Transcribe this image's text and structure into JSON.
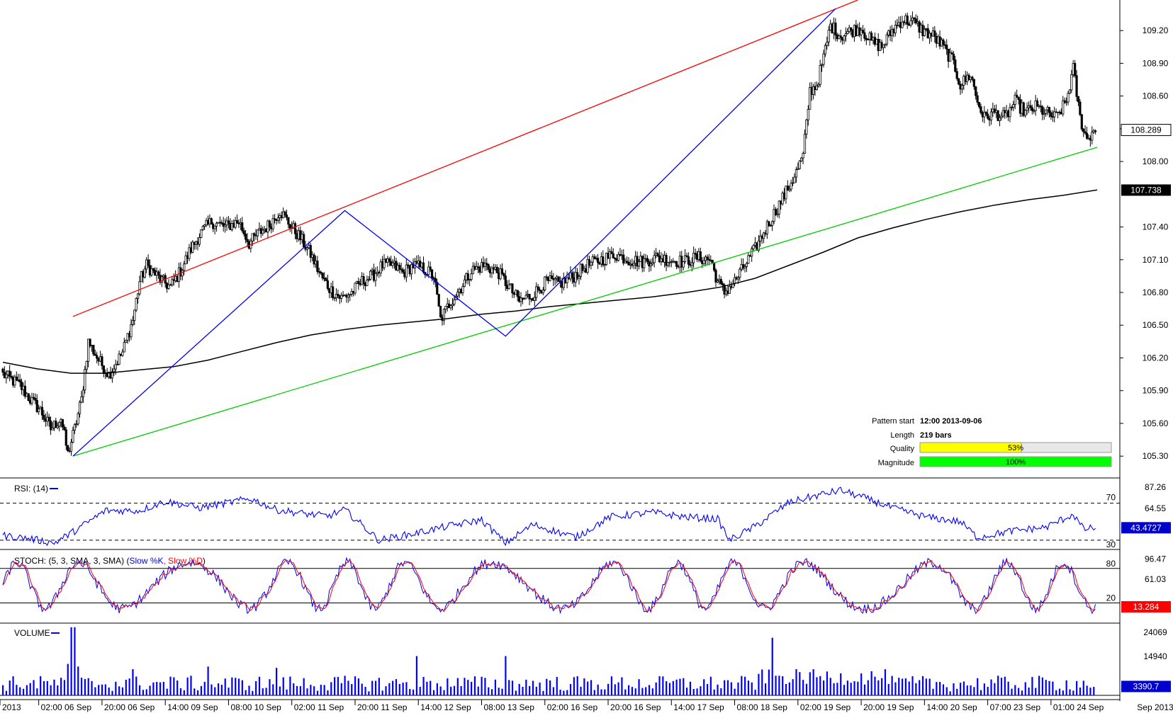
{
  "chart_data": [
    {
      "type": "candlestick",
      "panel": "price",
      "ylim": [
        105.1,
        109.48
      ],
      "y_ticks": [
        105.3,
        105.6,
        105.9,
        106.2,
        106.5,
        106.8,
        107.1,
        107.4,
        108.0,
        108.3,
        108.6,
        108.9,
        109.2
      ],
      "y_tick_labels": [
        "105.30",
        "105.60",
        "105.90",
        "106.20",
        "106.50",
        "106.80",
        "107.10",
        "107.40",
        "108.00",
        "108.30",
        "108.60",
        "108.90",
        "109.20"
      ],
      "current_price": "108.289",
      "ma_value": "107.738",
      "candle_key": [
        {
          "x": 0,
          "y": 106.05
        },
        {
          "x": 10,
          "y": 105.95
        },
        {
          "x": 16,
          "y": 105.82
        },
        {
          "x": 22,
          "y": 105.72
        },
        {
          "x": 28,
          "y": 105.55
        },
        {
          "x": 34,
          "y": 105.65
        },
        {
          "x": 38,
          "y": 105.32
        },
        {
          "x": 42,
          "y": 105.55
        },
        {
          "x": 46,
          "y": 105.82
        },
        {
          "x": 50,
          "y": 106.35
        },
        {
          "x": 56,
          "y": 106.18
        },
        {
          "x": 62,
          "y": 106.05
        },
        {
          "x": 70,
          "y": 106.25
        },
        {
          "x": 76,
          "y": 106.55
        },
        {
          "x": 80,
          "y": 106.9
        },
        {
          "x": 84,
          "y": 107.05
        },
        {
          "x": 92,
          "y": 106.92
        },
        {
          "x": 98,
          "y": 106.85
        },
        {
          "x": 104,
          "y": 107.0
        },
        {
          "x": 110,
          "y": 107.2
        },
        {
          "x": 116,
          "y": 107.35
        },
        {
          "x": 122,
          "y": 107.45
        },
        {
          "x": 130,
          "y": 107.4
        },
        {
          "x": 138,
          "y": 107.45
        },
        {
          "x": 144,
          "y": 107.25
        },
        {
          "x": 150,
          "y": 107.35
        },
        {
          "x": 156,
          "y": 107.42
        },
        {
          "x": 162,
          "y": 107.55
        },
        {
          "x": 168,
          "y": 107.42
        },
        {
          "x": 174,
          "y": 107.3
        },
        {
          "x": 180,
          "y": 107.15
        },
        {
          "x": 186,
          "y": 106.95
        },
        {
          "x": 192,
          "y": 106.82
        },
        {
          "x": 198,
          "y": 106.75
        },
        {
          "x": 204,
          "y": 106.8
        },
        {
          "x": 210,
          "y": 106.9
        },
        {
          "x": 216,
          "y": 106.95
        },
        {
          "x": 222,
          "y": 107.05
        },
        {
          "x": 228,
          "y": 107.05
        },
        {
          "x": 234,
          "y": 106.98
        },
        {
          "x": 240,
          "y": 107.05
        },
        {
          "x": 246,
          "y": 107.02
        },
        {
          "x": 252,
          "y": 106.95
        },
        {
          "x": 256,
          "y": 106.55
        },
        {
          "x": 262,
          "y": 106.72
        },
        {
          "x": 268,
          "y": 106.85
        },
        {
          "x": 274,
          "y": 107.0
        },
        {
          "x": 282,
          "y": 107.05
        },
        {
          "x": 290,
          "y": 106.98
        },
        {
          "x": 296,
          "y": 106.85
        },
        {
          "x": 302,
          "y": 106.72
        },
        {
          "x": 310,
          "y": 106.78
        },
        {
          "x": 318,
          "y": 106.9
        },
        {
          "x": 326,
          "y": 106.88
        },
        {
          "x": 334,
          "y": 106.95
        },
        {
          "x": 342,
          "y": 107.05
        },
        {
          "x": 350,
          "y": 107.1
        },
        {
          "x": 358,
          "y": 107.15
        },
        {
          "x": 366,
          "y": 107.1
        },
        {
          "x": 374,
          "y": 107.08
        },
        {
          "x": 382,
          "y": 107.12
        },
        {
          "x": 390,
          "y": 107.1
        },
        {
          "x": 398,
          "y": 107.08
        },
        {
          "x": 406,
          "y": 107.12
        },
        {
          "x": 414,
          "y": 107.1
        },
        {
          "x": 418,
          "y": 106.9
        },
        {
          "x": 422,
          "y": 106.8
        },
        {
          "x": 428,
          "y": 106.9
        },
        {
          "x": 434,
          "y": 107.05
        },
        {
          "x": 440,
          "y": 107.2
        },
        {
          "x": 446,
          "y": 107.38
        },
        {
          "x": 452,
          "y": 107.55
        },
        {
          "x": 458,
          "y": 107.72
        },
        {
          "x": 464,
          "y": 107.9
        },
        {
          "x": 468,
          "y": 108.05
        },
        {
          "x": 472,
          "y": 108.65
        },
        {
          "x": 476,
          "y": 108.7
        },
        {
          "x": 480,
          "y": 108.95
        },
        {
          "x": 484,
          "y": 109.25
        },
        {
          "x": 490,
          "y": 109.15
        },
        {
          "x": 496,
          "y": 109.2
        },
        {
          "x": 502,
          "y": 109.22
        },
        {
          "x": 508,
          "y": 109.1
        },
        {
          "x": 514,
          "y": 109.05
        },
        {
          "x": 520,
          "y": 109.2
        },
        {
          "x": 526,
          "y": 109.3
        },
        {
          "x": 532,
          "y": 109.28
        },
        {
          "x": 538,
          "y": 109.2
        },
        {
          "x": 544,
          "y": 109.15
        },
        {
          "x": 550,
          "y": 109.05
        },
        {
          "x": 556,
          "y": 108.9
        },
        {
          "x": 560,
          "y": 108.7
        },
        {
          "x": 566,
          "y": 108.8
        },
        {
          "x": 570,
          "y": 108.55
        },
        {
          "x": 574,
          "y": 108.4
        },
        {
          "x": 580,
          "y": 108.45
        },
        {
          "x": 586,
          "y": 108.4
        },
        {
          "x": 592,
          "y": 108.55
        },
        {
          "x": 598,
          "y": 108.45
        },
        {
          "x": 604,
          "y": 108.5
        },
        {
          "x": 610,
          "y": 108.45
        },
        {
          "x": 616,
          "y": 108.4
        },
        {
          "x": 622,
          "y": 108.55
        },
        {
          "x": 626,
          "y": 108.85
        },
        {
          "x": 630,
          "y": 108.4
        },
        {
          "x": 634,
          "y": 108.2
        },
        {
          "x": 638,
          "y": 108.289
        }
      ],
      "moving_average": [
        {
          "x": 0,
          "y": 106.16
        },
        {
          "x": 20,
          "y": 106.1
        },
        {
          "x": 40,
          "y": 106.06
        },
        {
          "x": 60,
          "y": 106.06
        },
        {
          "x": 80,
          "y": 106.09
        },
        {
          "x": 100,
          "y": 106.12
        },
        {
          "x": 120,
          "y": 106.18
        },
        {
          "x": 140,
          "y": 106.26
        },
        {
          "x": 160,
          "y": 106.34
        },
        {
          "x": 180,
          "y": 106.41
        },
        {
          "x": 200,
          "y": 106.46
        },
        {
          "x": 220,
          "y": 106.5
        },
        {
          "x": 240,
          "y": 106.53
        },
        {
          "x": 260,
          "y": 106.56
        },
        {
          "x": 280,
          "y": 106.6
        },
        {
          "x": 300,
          "y": 106.63
        },
        {
          "x": 320,
          "y": 106.67
        },
        {
          "x": 340,
          "y": 106.7
        },
        {
          "x": 360,
          "y": 106.73
        },
        {
          "x": 380,
          "y": 106.76
        },
        {
          "x": 400,
          "y": 106.8
        },
        {
          "x": 420,
          "y": 106.85
        },
        {
          "x": 440,
          "y": 106.93
        },
        {
          "x": 460,
          "y": 107.05
        },
        {
          "x": 480,
          "y": 107.17
        },
        {
          "x": 500,
          "y": 107.3
        },
        {
          "x": 520,
          "y": 107.39
        },
        {
          "x": 540,
          "y": 107.47
        },
        {
          "x": 560,
          "y": 107.54
        },
        {
          "x": 580,
          "y": 107.6
        },
        {
          "x": 600,
          "y": 107.65
        },
        {
          "x": 620,
          "y": 107.69
        },
        {
          "x": 640,
          "y": 107.74
        }
      ],
      "resistance_line": {
        "from": {
          "x": 41,
          "y": 106.58
        },
        "to": {
          "x": 500,
          "y": 109.48
        }
      },
      "support_line": {
        "from": {
          "x": 41,
          "y": 105.3
        },
        "to": {
          "x": 640,
          "y": 108.13
        }
      },
      "zigzag": [
        {
          "x": 41,
          "y": 105.3
        },
        {
          "x": 200,
          "y": 107.55
        },
        {
          "x": 294,
          "y": 106.4
        },
        {
          "x": 487,
          "y": 109.4
        }
      ],
      "pattern_info": {
        "rows": [
          {
            "label": "Pattern start",
            "value": "12:00 2013-09-06"
          },
          {
            "label": "Length",
            "value": "219 bars"
          }
        ],
        "quality": {
          "label": "Quality",
          "value": 53,
          "text": "53%",
          "color": "#ffff00"
        },
        "magnitude": {
          "label": "Magnitude",
          "value": 100,
          "text": "100%",
          "color": "#00ff00"
        }
      },
      "colors": {
        "up": "#00c000",
        "down": "#000000",
        "resistance": "#ff0000",
        "support": "#00cc00",
        "zigzag": "#0000ff",
        "ma": "#000000"
      }
    },
    {
      "type": "line",
      "panel": "rsi",
      "title": "RSI: (14)",
      "ylim": [
        20,
        95
      ],
      "levels": [
        70,
        30
      ],
      "level_labels": [
        "70",
        "30"
      ],
      "axis_labels": [
        "87.26",
        "64.55"
      ],
      "axis_values": [
        87.26,
        64.55
      ],
      "current_value": "43.4727",
      "key_points": [
        {
          "x": 0,
          "y": 35
        },
        {
          "x": 15,
          "y": 32
        },
        {
          "x": 30,
          "y": 27
        },
        {
          "x": 42,
          "y": 40
        },
        {
          "x": 60,
          "y": 62
        },
        {
          "x": 80,
          "y": 62
        },
        {
          "x": 95,
          "y": 72
        },
        {
          "x": 115,
          "y": 65
        },
        {
          "x": 130,
          "y": 70
        },
        {
          "x": 145,
          "y": 75
        },
        {
          "x": 160,
          "y": 63
        },
        {
          "x": 175,
          "y": 59
        },
        {
          "x": 190,
          "y": 56
        },
        {
          "x": 200,
          "y": 63
        },
        {
          "x": 220,
          "y": 30
        },
        {
          "x": 240,
          "y": 37
        },
        {
          "x": 260,
          "y": 45
        },
        {
          "x": 280,
          "y": 52
        },
        {
          "x": 294,
          "y": 27
        },
        {
          "x": 310,
          "y": 47
        },
        {
          "x": 335,
          "y": 33
        },
        {
          "x": 355,
          "y": 55
        },
        {
          "x": 380,
          "y": 60
        },
        {
          "x": 400,
          "y": 55
        },
        {
          "x": 418,
          "y": 53
        },
        {
          "x": 425,
          "y": 30
        },
        {
          "x": 440,
          "y": 45
        },
        {
          "x": 460,
          "y": 71
        },
        {
          "x": 480,
          "y": 80
        },
        {
          "x": 490,
          "y": 84
        },
        {
          "x": 505,
          "y": 75
        },
        {
          "x": 520,
          "y": 65
        },
        {
          "x": 540,
          "y": 55
        },
        {
          "x": 560,
          "y": 50
        },
        {
          "x": 570,
          "y": 33
        },
        {
          "x": 590,
          "y": 40
        },
        {
          "x": 610,
          "y": 44
        },
        {
          "x": 626,
          "y": 58
        },
        {
          "x": 632,
          "y": 42
        },
        {
          "x": 640,
          "y": 43.47
        }
      ],
      "color": "#0000ff"
    },
    {
      "type": "line",
      "panel": "stoch",
      "title_prefix": "STOCH: (5, 3, SMA, 3, SMA) (",
      "series": [
        {
          "name": "Slow %K",
          "color": "#0000ff"
        },
        {
          "name": "Slow %D",
          "color": "#ff0000"
        }
      ],
      "title_suffix": ")",
      "ylim": [
        -15,
        108
      ],
      "levels": [
        80,
        20
      ],
      "level_labels": [
        "80",
        "20"
      ],
      "axis_labels": [
        "96.47",
        "61.03"
      ],
      "axis_values": [
        96.47,
        61.03
      ],
      "current_value": "13.284",
      "period_bars": 12
    },
    {
      "type": "bar",
      "panel": "volume",
      "title": "VOLUME",
      "ylim": [
        0,
        26500
      ],
      "axis_labels": [
        "24069",
        "14940"
      ],
      "axis_values": [
        24069,
        14940
      ],
      "current_value": "3390.7",
      "spikes": [
        {
          "x": 40,
          "y": 26000
        },
        {
          "x": 42,
          "y": 26000
        },
        {
          "x": 38,
          "y": 12000
        },
        {
          "x": 44,
          "y": 11000
        },
        {
          "x": 242,
          "y": 15000
        },
        {
          "x": 294,
          "y": 15000
        },
        {
          "x": 450,
          "y": 22000
        },
        {
          "x": 76,
          "y": 10000
        },
        {
          "x": 120,
          "y": 11000
        },
        {
          "x": 160,
          "y": 10500
        }
      ],
      "color": "#0000ff"
    }
  ],
  "x_axis": {
    "labels": [
      "2013",
      "02:00 06 Sep",
      "20:00 06 Sep",
      "14:00 09 Sep",
      "08:00 10 Sep",
      "02:00 11 Sep",
      "20:00 11 Sep",
      "14:00 12 Sep",
      "08:00 13 Sep",
      "02:00 16 Sep",
      "20:00 16 Sep",
      "14:00 17 Sep",
      "08:00 18 Sep",
      "02:00 19 Sep",
      "20:00 19 Sep",
      "14:00 20 Sep",
      "07:00 23 Sep",
      "01:00 24 Sep",
      "Sep 2013"
    ],
    "bar_index": [
      0,
      21,
      58,
      95,
      132,
      169,
      206,
      243,
      280,
      317,
      354,
      391,
      428,
      465,
      502,
      539,
      576,
      613,
      null
    ]
  }
}
